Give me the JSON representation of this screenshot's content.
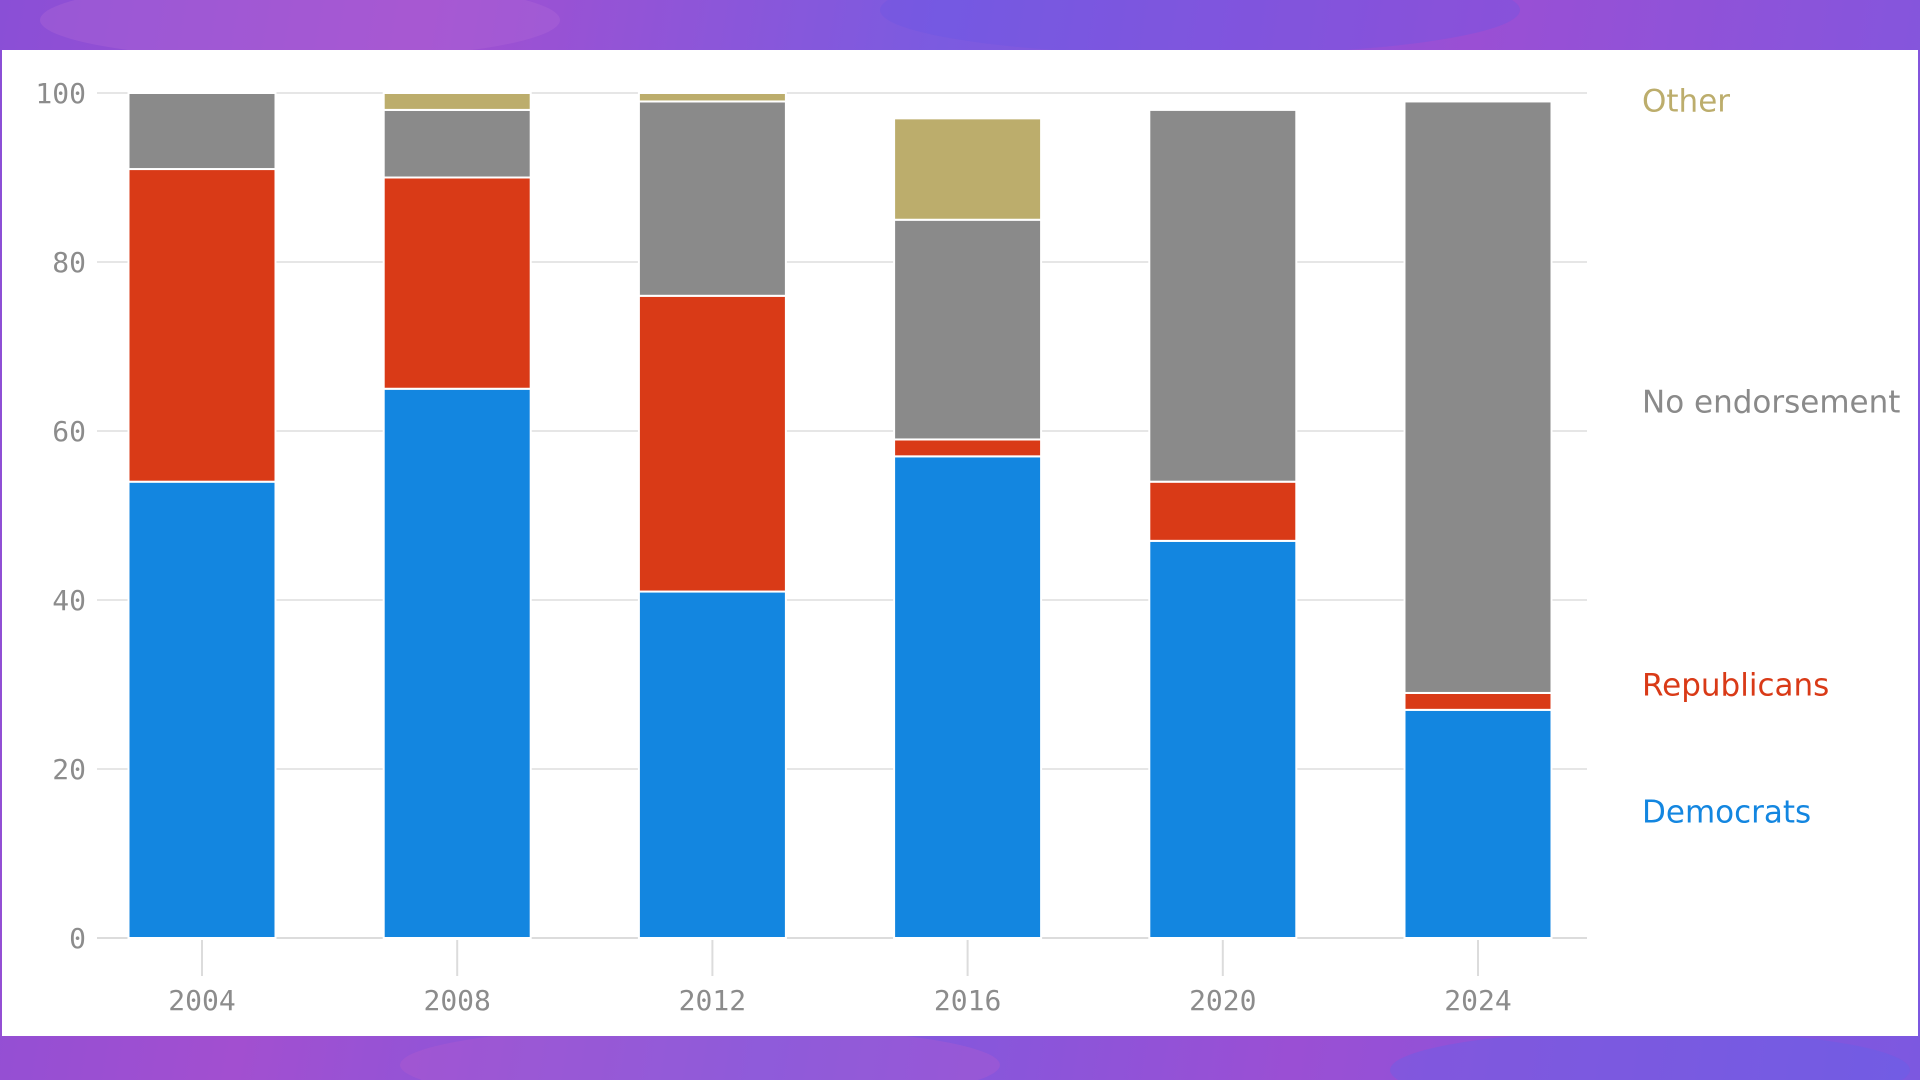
{
  "chart_data": {
    "type": "bar",
    "stacked": true,
    "categories": [
      "2004",
      "2008",
      "2012",
      "2016",
      "2020",
      "2024"
    ],
    "series": [
      {
        "name": "Democrats",
        "color": "#1386e0",
        "values": [
          54,
          65,
          41,
          57,
          47,
          27
        ]
      },
      {
        "name": "Republicans",
        "color": "#d93a17",
        "values": [
          37,
          25,
          35,
          2,
          7,
          2
        ]
      },
      {
        "name": "No endorsement",
        "color": "#8a8a8a",
        "values": [
          9,
          8,
          23,
          26,
          44,
          70
        ]
      },
      {
        "name": "Other",
        "color": "#bcad6c",
        "values": [
          0,
          2,
          1,
          12,
          0,
          0
        ]
      }
    ],
    "yticks": [
      "0",
      "20",
      "40",
      "60",
      "80",
      "100"
    ],
    "ylim": [
      0,
      100
    ],
    "grid": true,
    "legend": "right, labels aligned with 2024 stack"
  }
}
